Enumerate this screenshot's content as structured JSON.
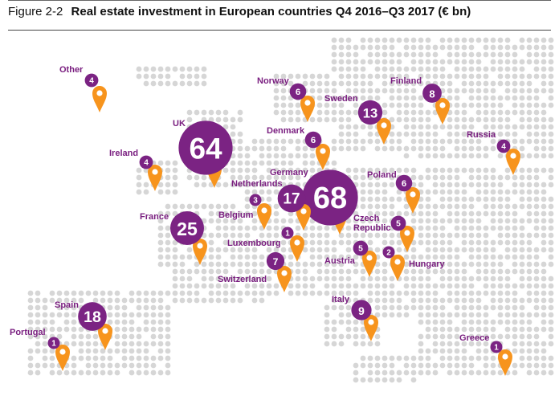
{
  "title": {
    "number": "Figure 2-2",
    "text": "Real estate investment in European countries Q4 2016–Q3 2017 (€ bn)"
  },
  "colors": {
    "bubble": "#7b2383",
    "pin": "#f7941d",
    "label": "#7a1f80",
    "land_dot": "#d6d6d6"
  },
  "countries": [
    {
      "name": "Other",
      "value": 4
    },
    {
      "name": "Norway",
      "value": 6
    },
    {
      "name": "Finland",
      "value": 8
    },
    {
      "name": "Sweden",
      "value": 13
    },
    {
      "name": "UK",
      "value": 64
    },
    {
      "name": "Denmark",
      "value": 6
    },
    {
      "name": "Russia",
      "value": 4
    },
    {
      "name": "Ireland",
      "value": 4
    },
    {
      "name": "Germany",
      "value": 68
    },
    {
      "name": "Netherlands",
      "value": 17
    },
    {
      "name": "Poland",
      "value": 6
    },
    {
      "name": "Belgium",
      "value": 3
    },
    {
      "name": "France",
      "value": 25
    },
    {
      "name": "Czech Republic",
      "value": 5
    },
    {
      "name": "Luxembourg",
      "value": 1
    },
    {
      "name": "Austria",
      "value": 5
    },
    {
      "name": "Hungary",
      "value": 2
    },
    {
      "name": "Switzerland",
      "value": 7
    },
    {
      "name": "Italy",
      "value": 9
    },
    {
      "name": "Spain",
      "value": 18
    },
    {
      "name": "Portugal",
      "value": 1
    },
    {
      "name": "Greece",
      "value": 1
    }
  ]
}
